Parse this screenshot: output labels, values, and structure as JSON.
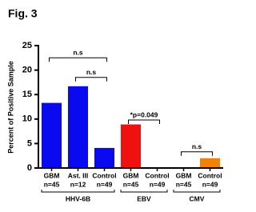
{
  "chart_data": {
    "type": "bar",
    "title": "Fig. 3",
    "y_label": "Percent of Positive Sample",
    "categories": [
      "GBM",
      "Ast. III",
      "Control",
      "GBM",
      "Control",
      "GBM",
      "Control"
    ],
    "sample_sizes": [
      "n=45",
      "n=12",
      "n=49",
      "n=45",
      "n=49",
      "n=45",
      "n=49"
    ],
    "values": [
      13.3,
      16.7,
      4.1,
      8.9,
      0,
      0,
      2.0
    ],
    "colors": [
      "#0a0af0",
      "#0a0af0",
      "#0a0af0",
      "#f01010",
      "#f01010",
      "#f0820a",
      "#f0820a"
    ],
    "groups": [
      {
        "name": "HHV-6B",
        "count": 3
      },
      {
        "name": "EBV",
        "count": 2
      },
      {
        "name": "CMV",
        "count": 2
      }
    ],
    "annotations": [
      {
        "text": "n.s",
        "from": 0,
        "to": 2,
        "y": 22.5
      },
      {
        "text": "n.s",
        "from": 1,
        "to": 2,
        "y": 18.5
      },
      {
        "text": "*p=0.049",
        "from": 3,
        "to": 4,
        "y": 9.8
      },
      {
        "text": "n.s",
        "from": 5,
        "to": 6,
        "y": 3.3
      }
    ],
    "ylim": [
      0,
      25
    ],
    "yticks": [
      0,
      5,
      10,
      15,
      20,
      25
    ]
  }
}
